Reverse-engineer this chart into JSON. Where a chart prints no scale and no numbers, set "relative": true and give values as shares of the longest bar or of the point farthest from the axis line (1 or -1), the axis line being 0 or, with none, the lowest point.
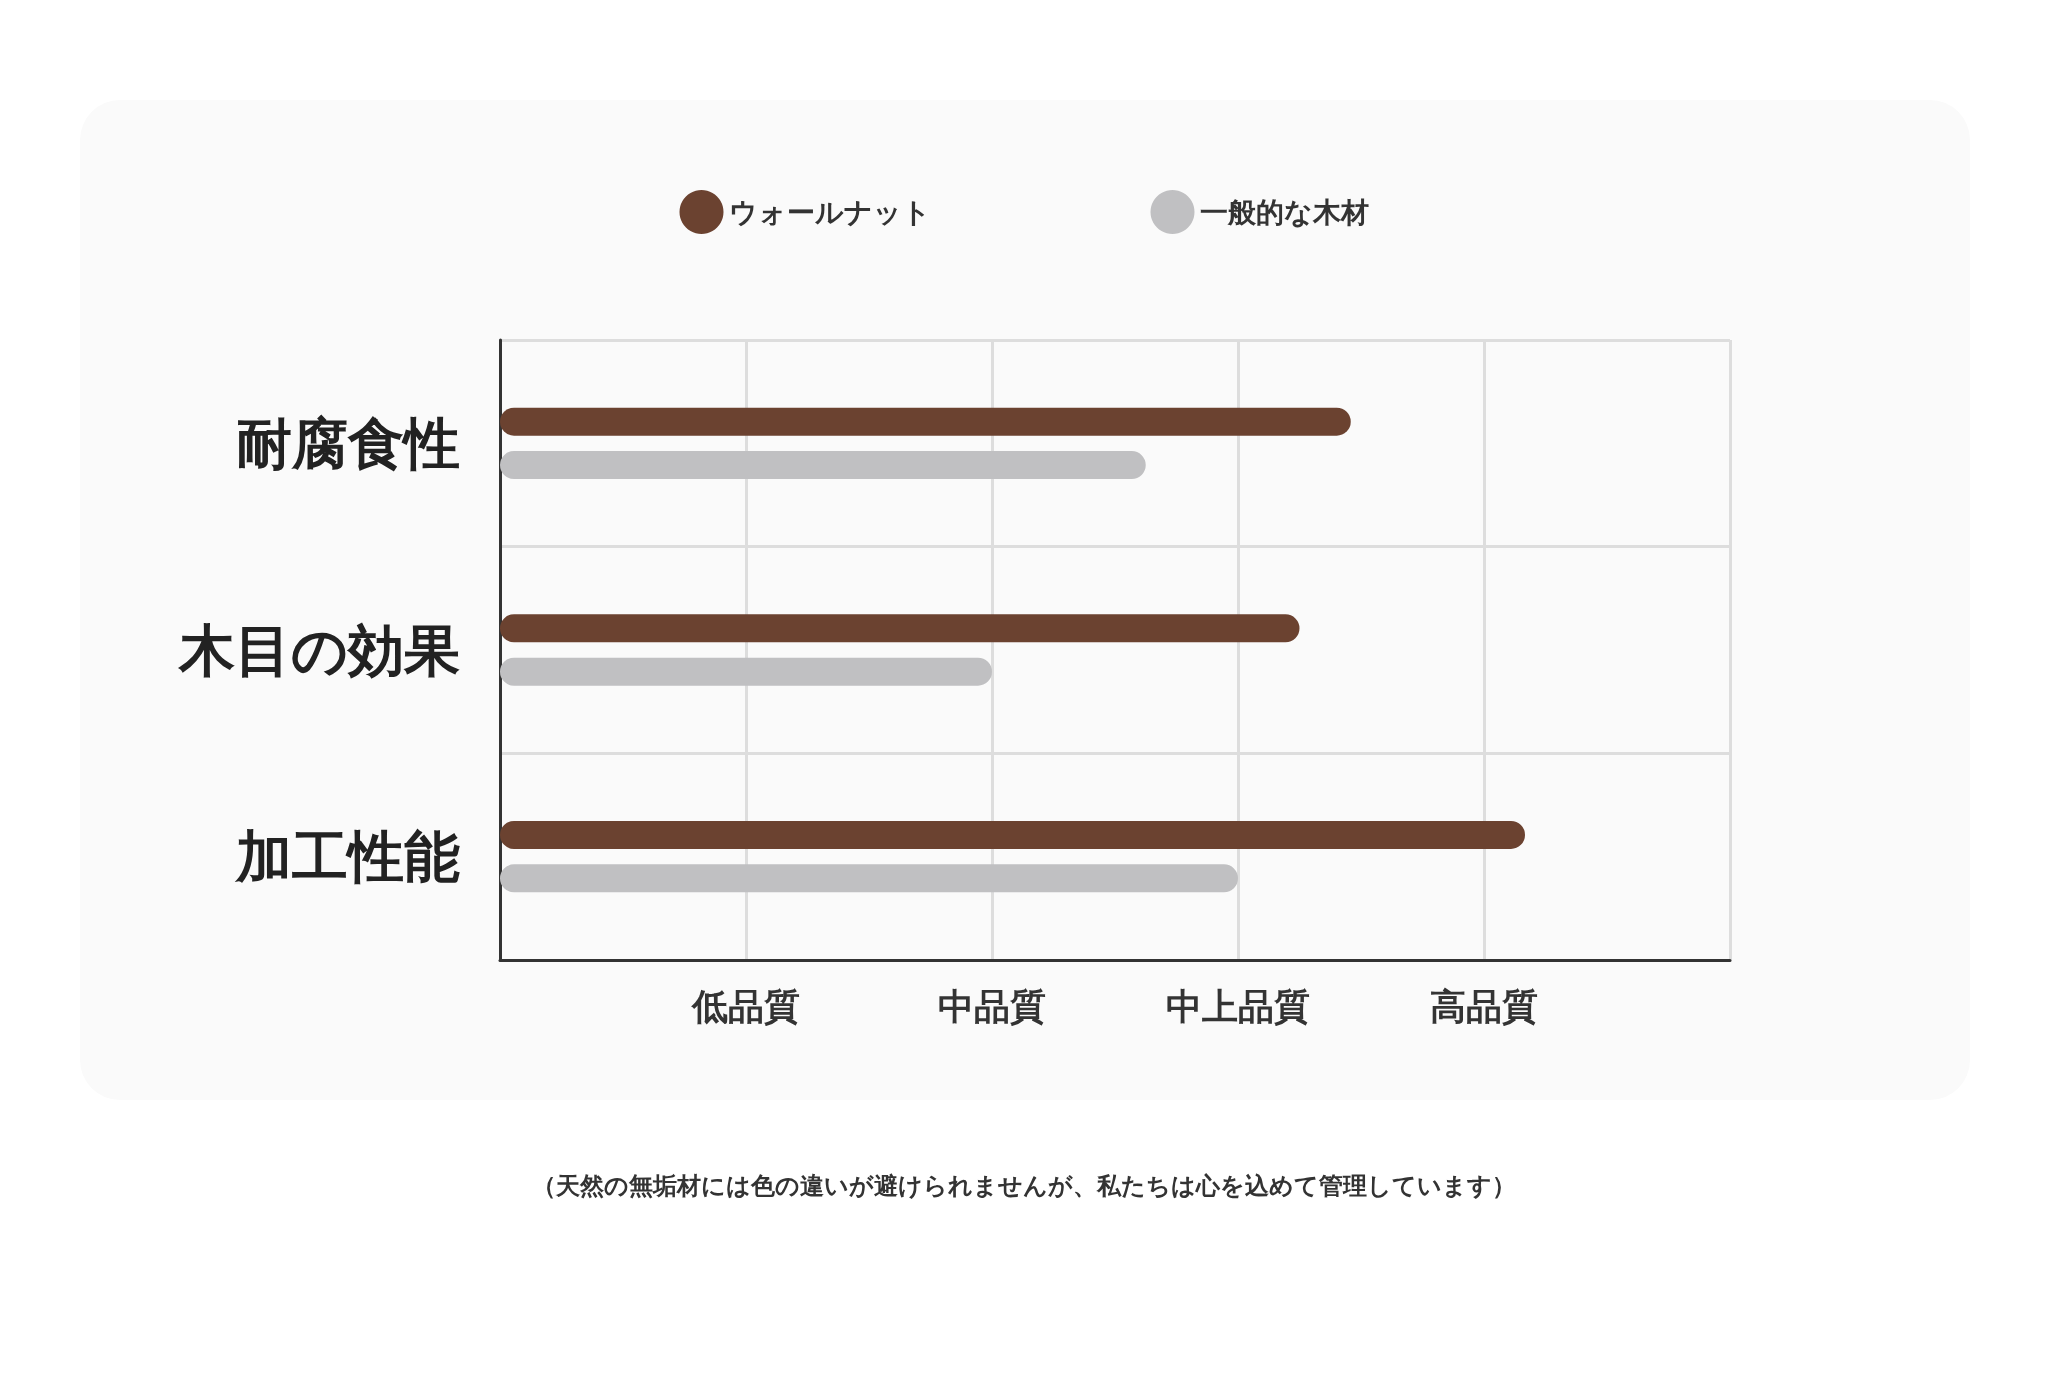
{
  "chart_data": {
    "type": "bar",
    "orientation": "horizontal",
    "relative": true,
    "categories": [
      "耐腐食性",
      "木目の効果",
      "加工性能"
    ],
    "series": [
      {
        "name": "ウォールナット",
        "color": "#6b4230",
        "values": [
          0.83,
          0.78,
          1
        ]
      },
      {
        "name": "一般的な木材",
        "color": "#c0c0c2",
        "values": [
          0.63,
          0.48,
          0.72
        ]
      }
    ],
    "grid": true,
    "legend": "top",
    "annotations": [
      "低品質",
      "中品質",
      "中上品質",
      "高品質",
      "（天然の無垢材には色の違いが避けられませんが、私たちは心を込めて管理しています）"
    ]
  }
}
